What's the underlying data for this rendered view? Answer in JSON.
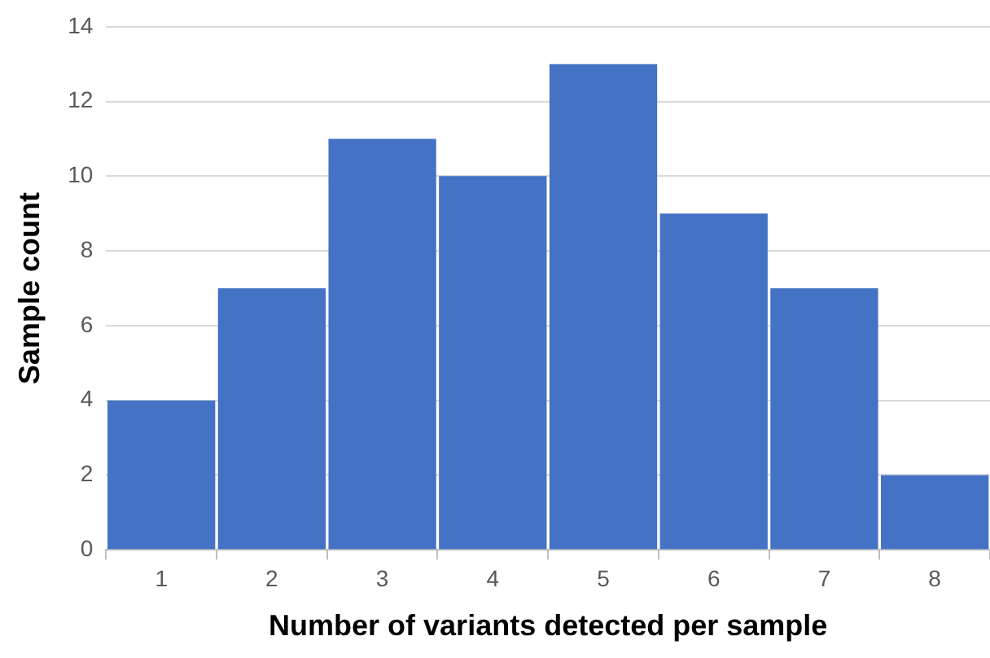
{
  "chart_data": {
    "type": "bar",
    "xlabel": "Number of variants detected per sample",
    "ylabel": "Sample count",
    "categories": [
      "1",
      "2",
      "3",
      "4",
      "5",
      "6",
      "7",
      "8"
    ],
    "values": [
      4,
      7,
      11,
      10,
      13,
      9,
      7,
      2
    ],
    "color": "#4472c4",
    "ylim": [
      0,
      14
    ],
    "yticks": [
      0,
      2,
      4,
      6,
      8,
      10,
      12,
      14
    ],
    "grid": "y"
  }
}
